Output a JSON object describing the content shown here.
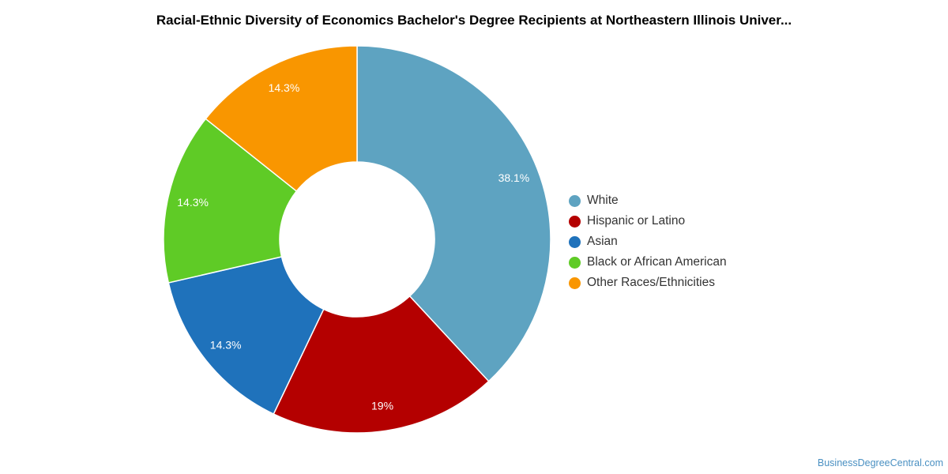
{
  "chart_data": {
    "type": "pie",
    "title": "Racial-Ethnic Diversity of Economics Bachelor's Degree Recipients at Northeastern Illinois Univer...",
    "donut": true,
    "legend_position": "right",
    "slices": [
      {
        "name": "White",
        "value": 38.1,
        "label": "38.1%",
        "color": "#5ea3c1"
      },
      {
        "name": "Hispanic or Latino",
        "value": 19.0,
        "label": "19%",
        "color": "#b40000"
      },
      {
        "name": "Asian",
        "value": 14.3,
        "label": "14.3%",
        "color": "#1f72bb"
      },
      {
        "name": "Black or African American",
        "value": 14.3,
        "label": "14.3%",
        "color": "#5fcb26"
      },
      {
        "name": "Other Races/Ethnicities",
        "value": 14.3,
        "label": "14.3%",
        "color": "#f99600"
      }
    ]
  },
  "watermark": "BusinessDegreeCentral.com"
}
